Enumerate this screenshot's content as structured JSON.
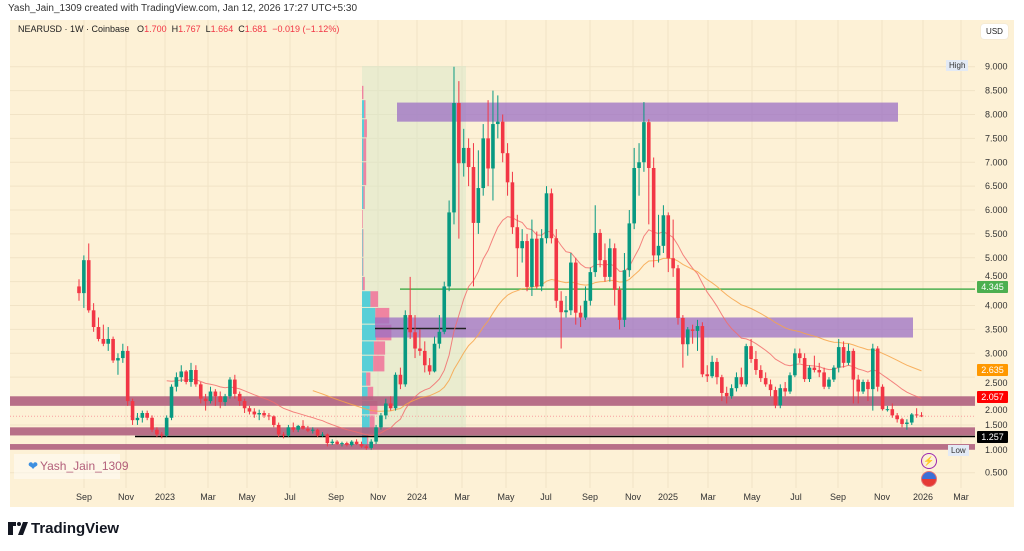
{
  "credit": "Yash_Jain_1309 created with TradingView.com, Jan 12, 2026 17:27 UTC+5:30",
  "legend": {
    "symbol": "NEARUSD · 1W · Coinbase",
    "o_label": "O",
    "o": "1.700",
    "h_label": "H",
    "h": "1.767",
    "l_label": "L",
    "l": "1.664",
    "c_label": "C",
    "c": "1.681",
    "change": "−0.019 (−1.12%)"
  },
  "currency_button": "USD",
  "high_label": "High",
  "low_label": "Low",
  "watermark": "Yash_Jain_1309",
  "footer_logo": "TradingView",
  "icons": {
    "watermark": "heart-icon",
    "alert": "lightning-icon",
    "region": "us-flag-icon",
    "logo": "tradingview-logo-icon"
  },
  "colors": {
    "up": "#089981",
    "down": "#f23645",
    "ema_fast": "#f26d6d",
    "ema_slow": "#f7a44a",
    "zone": "#9b6fc4",
    "band": "#b0607f",
    "level": "#4caf50",
    "background": "#fdf1d6"
  },
  "chart_data": {
    "type": "candlestick",
    "symbol": "NEARUSD",
    "interval": "1W",
    "ylim": [
      0.3,
      9.4
    ],
    "y_ticks": [
      "0.500",
      "1.000",
      "1.500",
      "2.000",
      "2.500",
      "3.000",
      "3.500",
      "4.000",
      "4.500",
      "5.000",
      "5.500",
      "6.000",
      "6.500",
      "7.000",
      "7.500",
      "8.000",
      "8.500",
      "9.000"
    ],
    "x_ticks": [
      "Sep",
      "Nov",
      "2023",
      "Mar",
      "May",
      "Jul",
      "Sep",
      "Nov",
      "2024",
      "Mar",
      "May",
      "Jul",
      "Sep",
      "Nov",
      "2025",
      "Mar",
      "May",
      "Jul",
      "Sep",
      "Nov",
      "2026",
      "Mar"
    ],
    "price_labels": {
      "level": "4.345",
      "ema_slow": "2.635",
      "ema_fast": "2.057",
      "support": "1.257"
    },
    "levels": {
      "horizontal_green": 4.345,
      "support_black": 1.257,
      "last_close": 1.681,
      "range_line": 3.52
    },
    "zones": [
      {
        "from": 7.85,
        "to": 8.25
      },
      {
        "from": 3.33,
        "to": 3.75
      }
    ],
    "bands": [
      {
        "from": 1.9,
        "to": 2.1
      },
      {
        "from": 1.28,
        "to": 1.45
      },
      {
        "from": 0.98,
        "to": 1.1
      }
    ],
    "ema_periods": [
      20,
      50
    ],
    "volume_profile": [
      [
        8.3,
        8.6,
        0,
        0.1
      ],
      [
        7.9,
        8.3,
        0.15,
        0.1
      ],
      [
        7.5,
        7.9,
        0.15,
        0.2
      ],
      [
        7.0,
        7.5,
        0.1,
        0.2
      ],
      [
        6.5,
        7.0,
        0.1,
        0.2
      ],
      [
        6.0,
        6.5,
        0.1,
        0.1
      ],
      [
        5.6,
        6.0,
        0,
        0.05
      ],
      [
        5.0,
        5.6,
        0.05,
        0.05
      ],
      [
        4.6,
        5.0,
        0.05,
        0.05
      ],
      [
        4.3,
        4.6,
        0.05,
        0.15
      ],
      [
        3.95,
        4.3,
        0.6,
        0.55
      ],
      [
        3.6,
        3.95,
        0.95,
        1.0
      ],
      [
        3.25,
        3.6,
        1.0,
        1.1
      ],
      [
        2.95,
        3.25,
        0.85,
        0.8
      ],
      [
        2.6,
        2.95,
        0.8,
        0.8
      ],
      [
        2.3,
        2.6,
        0.3,
        0.3
      ],
      [
        2.0,
        2.3,
        0.4,
        0.4
      ],
      [
        1.7,
        2.0,
        0.55,
        0.55
      ],
      [
        1.3,
        1.7,
        0.55,
        0.35
      ],
      [
        1.0,
        1.3,
        0.35,
        0.1
      ]
    ],
    "candles": [
      [
        4.4,
        4.55,
        4.1,
        4.26
      ],
      [
        4.26,
        5.05,
        3.95,
        4.95
      ],
      [
        4.95,
        5.3,
        3.85,
        3.9
      ],
      [
        3.9,
        4.05,
        3.45,
        3.55
      ],
      [
        3.55,
        3.75,
        3.25,
        3.3
      ],
      [
        3.3,
        3.6,
        3.15,
        3.2
      ],
      [
        3.2,
        3.55,
        3.05,
        3.3
      ],
      [
        3.3,
        3.35,
        2.8,
        2.85
      ],
      [
        2.85,
        3.0,
        2.55,
        2.9
      ],
      [
        2.9,
        3.2,
        2.8,
        3.05
      ],
      [
        3.05,
        3.15,
        1.9,
        2.0
      ],
      [
        2.0,
        2.05,
        1.5,
        1.6
      ],
      [
        1.6,
        1.75,
        1.5,
        1.65
      ],
      [
        1.65,
        1.8,
        1.55,
        1.75
      ],
      [
        1.75,
        1.8,
        1.6,
        1.65
      ],
      [
        1.65,
        1.7,
        1.35,
        1.4
      ],
      [
        1.4,
        1.45,
        1.25,
        1.3
      ],
      [
        1.3,
        1.35,
        1.22,
        1.28
      ],
      [
        1.28,
        1.7,
        1.25,
        1.65
      ],
      [
        1.65,
        2.35,
        1.6,
        2.3
      ],
      [
        2.3,
        2.6,
        2.2,
        2.5
      ],
      [
        2.5,
        2.75,
        2.4,
        2.62
      ],
      [
        2.62,
        2.65,
        2.35,
        2.4
      ],
      [
        2.4,
        2.8,
        2.3,
        2.65
      ],
      [
        2.65,
        2.75,
        2.3,
        2.35
      ],
      [
        2.35,
        2.4,
        1.95,
        2.05
      ],
      [
        2.05,
        2.15,
        1.8,
        2.0
      ],
      [
        2.0,
        2.3,
        1.95,
        2.2
      ],
      [
        2.2,
        2.25,
        1.9,
        2.1
      ],
      [
        2.1,
        2.2,
        1.85,
        1.98
      ],
      [
        1.98,
        2.15,
        1.9,
        2.1
      ],
      [
        2.1,
        2.5,
        2.05,
        2.45
      ],
      [
        2.45,
        2.55,
        2.05,
        2.15
      ],
      [
        2.15,
        2.2,
        1.9,
        2.0
      ],
      [
        2.0,
        2.05,
        1.75,
        1.85
      ],
      [
        1.85,
        1.9,
        1.72,
        1.78
      ],
      [
        1.78,
        1.85,
        1.65,
        1.72
      ],
      [
        1.72,
        1.82,
        1.6,
        1.75
      ],
      [
        1.75,
        1.8,
        1.65,
        1.7
      ],
      [
        1.7,
        1.75,
        1.6,
        1.68
      ],
      [
        1.68,
        1.7,
        1.45,
        1.5
      ],
      [
        1.5,
        1.55,
        1.25,
        1.3
      ],
      [
        1.3,
        1.35,
        1.22,
        1.28
      ],
      [
        1.28,
        1.5,
        1.25,
        1.45
      ],
      [
        1.45,
        1.55,
        1.35,
        1.4
      ],
      [
        1.4,
        1.5,
        1.35,
        1.48
      ],
      [
        1.48,
        1.6,
        1.4,
        1.42
      ],
      [
        1.42,
        1.48,
        1.35,
        1.38
      ],
      [
        1.38,
        1.45,
        1.32,
        1.4
      ],
      [
        1.4,
        1.42,
        1.25,
        1.28
      ],
      [
        1.28,
        1.35,
        1.25,
        1.3
      ],
      [
        1.3,
        1.32,
        1.05,
        1.12
      ],
      [
        1.12,
        1.2,
        1.08,
        1.15
      ],
      [
        1.15,
        1.18,
        1.08,
        1.1
      ],
      [
        1.1,
        1.15,
        1.05,
        1.12
      ],
      [
        1.12,
        1.15,
        1.05,
        1.08
      ],
      [
        1.08,
        1.18,
        1.05,
        1.15
      ],
      [
        1.15,
        1.2,
        1.08,
        1.1
      ],
      [
        1.1,
        1.15,
        1.02,
        1.05
      ],
      [
        1.05,
        1.08,
        0.98,
        1.02
      ],
      [
        1.02,
        1.2,
        0.98,
        1.15
      ],
      [
        1.15,
        1.5,
        1.1,
        1.45
      ],
      [
        1.45,
        1.75,
        1.4,
        1.7
      ],
      [
        1.7,
        2.05,
        1.62,
        1.95
      ],
      [
        1.95,
        2.1,
        1.8,
        1.85
      ],
      [
        1.85,
        2.6,
        1.8,
        2.55
      ],
      [
        2.55,
        2.7,
        2.25,
        2.35
      ],
      [
        2.35,
        3.9,
        2.3,
        3.8
      ],
      [
        3.8,
        4.6,
        3.3,
        3.44
      ],
      [
        3.44,
        3.8,
        2.9,
        3.1
      ],
      [
        3.1,
        3.5,
        2.95,
        3.05
      ],
      [
        3.05,
        3.25,
        2.6,
        2.75
      ],
      [
        2.75,
        2.9,
        2.55,
        2.62
      ],
      [
        2.62,
        3.35,
        2.6,
        3.2
      ],
      [
        3.2,
        3.8,
        3.1,
        3.45
      ],
      [
        3.45,
        4.5,
        3.4,
        4.4
      ],
      [
        4.4,
        6.2,
        4.3,
        5.95
      ],
      [
        5.95,
        9.0,
        5.7,
        8.24
      ],
      [
        8.24,
        8.7,
        5.4,
        6.98
      ],
      [
        6.98,
        7.7,
        6.7,
        7.3
      ],
      [
        7.3,
        7.5,
        6.5,
        6.9
      ],
      [
        6.9,
        7.4,
        4.4,
        5.73
      ],
      [
        5.73,
        7.25,
        5.5,
        6.46
      ],
      [
        6.46,
        7.8,
        6.3,
        7.5
      ],
      [
        7.5,
        8.3,
        6.5,
        6.87
      ],
      [
        6.87,
        8.5,
        6.2,
        7.8
      ],
      [
        7.8,
        8.4,
        7.5,
        7.85
      ],
      [
        7.85,
        8.0,
        7.0,
        7.19
      ],
      [
        7.19,
        7.4,
        6.3,
        6.58
      ],
      [
        6.58,
        6.8,
        5.5,
        5.64
      ],
      [
        5.64,
        5.9,
        4.6,
        5.2
      ],
      [
        5.2,
        5.6,
        4.9,
        5.35
      ],
      [
        5.35,
        5.5,
        4.3,
        4.39
      ],
      [
        4.39,
        5.8,
        4.2,
        5.4
      ],
      [
        5.4,
        5.55,
        4.35,
        4.4
      ],
      [
        4.4,
        5.6,
        4.3,
        5.41
      ],
      [
        5.41,
        6.5,
        5.3,
        6.35
      ],
      [
        6.35,
        6.45,
        5.3,
        5.41
      ],
      [
        5.41,
        5.6,
        3.95,
        4.1
      ],
      [
        4.1,
        4.3,
        3.1,
        3.86
      ],
      [
        3.86,
        4.2,
        3.75,
        3.9
      ],
      [
        3.9,
        5.1,
        3.8,
        4.9
      ],
      [
        4.9,
        5.0,
        3.6,
        3.85
      ],
      [
        3.85,
        4.0,
        3.55,
        3.75
      ],
      [
        3.75,
        4.4,
        3.7,
        4.1
      ],
      [
        4.1,
        4.8,
        4.0,
        4.7
      ],
      [
        4.7,
        6.1,
        4.6,
        5.52
      ],
      [
        5.52,
        5.6,
        4.8,
        4.95
      ],
      [
        4.95,
        5.3,
        4.5,
        4.6
      ],
      [
        4.6,
        5.4,
        4.5,
        5.2
      ],
      [
        5.2,
        5.3,
        4.0,
        4.33
      ],
      [
        4.33,
        4.4,
        3.5,
        3.7
      ],
      [
        3.7,
        5.1,
        3.55,
        4.74
      ],
      [
        4.74,
        6.0,
        4.6,
        5.72
      ],
      [
        5.72,
        7.3,
        5.6,
        6.88
      ],
      [
        6.88,
        7.4,
        6.3,
        7.0
      ],
      [
        7.0,
        8.26,
        6.8,
        7.84
      ],
      [
        7.84,
        7.9,
        5.7,
        6.88
      ],
      [
        6.88,
        7.1,
        4.8,
        5.05
      ],
      [
        5.05,
        5.9,
        4.9,
        5.25
      ],
      [
        5.25,
        6.1,
        5.1,
        5.89
      ],
      [
        5.89,
        5.95,
        4.7,
        4.99
      ],
      [
        4.99,
        5.8,
        4.6,
        4.78
      ],
      [
        4.78,
        4.85,
        3.6,
        3.74
      ],
      [
        3.74,
        3.8,
        2.7,
        3.19
      ],
      [
        3.19,
        3.55,
        2.95,
        3.5
      ],
      [
        3.5,
        3.6,
        3.2,
        3.47
      ],
      [
        3.47,
        3.7,
        3.05,
        3.57
      ],
      [
        3.57,
        3.65,
        2.5,
        2.56
      ],
      [
        2.56,
        2.75,
        2.4,
        2.52
      ],
      [
        2.52,
        2.95,
        2.48,
        2.82
      ],
      [
        2.82,
        2.9,
        2.35,
        2.5
      ],
      [
        2.5,
        2.55,
        2.0,
        2.17
      ],
      [
        2.17,
        2.3,
        1.95,
        2.1
      ],
      [
        2.1,
        2.35,
        2.05,
        2.27
      ],
      [
        2.27,
        2.6,
        2.2,
        2.5
      ],
      [
        2.5,
        2.7,
        2.3,
        2.35
      ],
      [
        2.35,
        3.2,
        2.3,
        3.15
      ],
      [
        3.15,
        3.3,
        2.8,
        2.88
      ],
      [
        2.88,
        3.05,
        2.55,
        2.65
      ],
      [
        2.65,
        2.75,
        2.4,
        2.48
      ],
      [
        2.48,
        2.6,
        2.3,
        2.35
      ],
      [
        2.35,
        2.45,
        2.1,
        2.23
      ],
      [
        2.23,
        2.3,
        1.85,
        1.91
      ],
      [
        1.91,
        2.35,
        1.85,
        2.27
      ],
      [
        2.27,
        2.4,
        2.1,
        2.2
      ],
      [
        2.2,
        2.6,
        2.15,
        2.54
      ],
      [
        2.54,
        3.1,
        2.5,
        3.0
      ],
      [
        3.0,
        3.1,
        2.8,
        2.9
      ],
      [
        2.9,
        3.0,
        2.4,
        2.46
      ],
      [
        2.46,
        2.75,
        2.4,
        2.7
      ],
      [
        2.7,
        2.95,
        2.6,
        2.65
      ],
      [
        2.65,
        2.8,
        2.5,
        2.6
      ],
      [
        2.6,
        2.7,
        2.25,
        2.3
      ],
      [
        2.3,
        2.5,
        2.25,
        2.45
      ],
      [
        2.45,
        2.75,
        2.4,
        2.7
      ],
      [
        2.7,
        3.3,
        2.6,
        3.13
      ],
      [
        3.13,
        3.25,
        2.7,
        2.8
      ],
      [
        2.8,
        3.2,
        2.75,
        3.05
      ],
      [
        3.05,
        3.1,
        1.95,
        2.45
      ],
      [
        2.45,
        2.55,
        1.95,
        2.2
      ],
      [
        2.2,
        2.45,
        2.15,
        2.4
      ],
      [
        2.4,
        2.45,
        2.0,
        2.25
      ],
      [
        2.25,
        3.2,
        1.8,
        3.1
      ],
      [
        3.1,
        3.15,
        2.2,
        2.3
      ],
      [
        2.3,
        2.35,
        1.8,
        1.83
      ],
      [
        1.83,
        1.9,
        1.78,
        1.83
      ],
      [
        1.83,
        1.95,
        1.65,
        1.7
      ],
      [
        1.7,
        1.75,
        1.55,
        1.62
      ],
      [
        1.62,
        1.65,
        1.45,
        1.52
      ],
      [
        1.52,
        1.62,
        1.4,
        1.55
      ],
      [
        1.55,
        1.75,
        1.5,
        1.72
      ],
      [
        1.72,
        1.85,
        1.65,
        1.7
      ],
      [
        1.7,
        1.767,
        1.664,
        1.681
      ]
    ]
  }
}
